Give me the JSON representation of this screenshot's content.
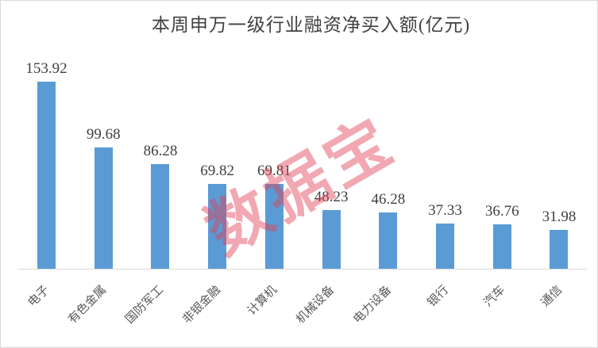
{
  "title": "本周申万一级行业融资净买入额(亿元)",
  "watermark_text": "数据宝",
  "colors": {
    "background": "#ffffff",
    "border": "#d9d9d9",
    "bar": "#5b9bd5",
    "axis_line": "#d9d9d9",
    "title_text": "#404040",
    "value_label_text": "#404040",
    "category_label_text": "#595959",
    "watermark": "rgba(226, 61, 85, 0.45)"
  },
  "chart_data": {
    "type": "bar",
    "title": "本周申万一级行业融资净买入额(亿元)",
    "categories": [
      "电子",
      "有色金属",
      "国防军工",
      "非银金融",
      "计算机",
      "机械设备",
      "电力设备",
      "银行",
      "汽车",
      "通信"
    ],
    "values": [
      153.92,
      99.68,
      86.28,
      69.82,
      69.81,
      48.23,
      46.28,
      37.33,
      36.76,
      31.98
    ],
    "xlabel": "",
    "ylabel": "",
    "ylim": [
      0,
      170
    ],
    "grid": false,
    "legend": false,
    "data_labels": true,
    "value_label_format": "2-decimals",
    "category_label_rotation_deg": -45,
    "watermark": "数据宝"
  }
}
